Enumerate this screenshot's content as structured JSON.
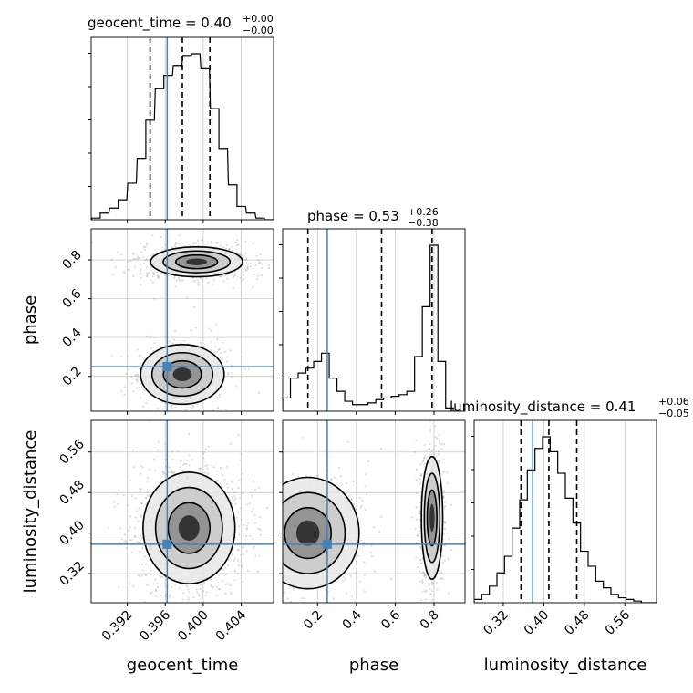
{
  "chart_data": {
    "type": "corner",
    "truth_color": "#4682b4",
    "parameters": [
      {
        "name": "geocent_time",
        "median": "0.40",
        "plus": "+0.00",
        "minus": "−0.00",
        "range": [
          0.3882,
          0.4074
        ],
        "ticks": [
          0.392,
          0.396,
          0.4,
          0.404
        ],
        "tick_labels": [
          "0.392",
          "0.396",
          "0.400",
          "0.404"
        ],
        "quantiles": [
          0.3944,
          0.3978,
          0.4007
        ],
        "truth": 0.3962
      },
      {
        "name": "phase",
        "median": "0.53",
        "plus": "+0.26",
        "minus": "−0.38",
        "range": [
          0.02,
          0.96
        ],
        "ticks": [
          0.2,
          0.4,
          0.6,
          0.8
        ],
        "tick_labels": [
          "0.2",
          "0.4",
          "0.6",
          "0.8"
        ],
        "quantiles": [
          0.15,
          0.53,
          0.79
        ],
        "truth": 0.25
      },
      {
        "name": "luminosity_distance",
        "median": "0.41",
        "plus": "+0.06",
        "minus": "−0.05",
        "range": [
          0.2625,
          0.6225
        ],
        "ticks": [
          0.32,
          0.4,
          0.48,
          0.56
        ],
        "tick_labels": [
          "0.32",
          "0.40",
          "0.48",
          "0.56"
        ],
        "quantiles": [
          0.355,
          0.41,
          0.465
        ],
        "truth": 0.378
      }
    ],
    "histograms": [
      {
        "param": "geocent_time",
        "centers": [
          0.3887,
          0.3896,
          0.3906,
          0.3915,
          0.3925,
          0.3935,
          0.3944,
          0.3954,
          0.3963,
          0.3973,
          0.3983,
          0.3992,
          0.4002,
          0.4012,
          0.4021,
          0.4031,
          0.404,
          0.405,
          0.406,
          0.4069
        ],
        "counts": [
          1,
          4,
          7,
          12,
          22,
          37,
          60,
          79,
          87,
          93,
          99,
          100,
          91,
          67,
          43,
          21,
          8,
          4,
          1,
          0
        ]
      },
      {
        "param": "phase",
        "centers": [
          0.04,
          0.08,
          0.12,
          0.16,
          0.2,
          0.24,
          0.28,
          0.32,
          0.36,
          0.4,
          0.44,
          0.48,
          0.52,
          0.56,
          0.6,
          0.64,
          0.68,
          0.72,
          0.76,
          0.8,
          0.84,
          0.88,
          0.92
        ],
        "counts": [
          8,
          20,
          23,
          26,
          30,
          35,
          20,
          12,
          6,
          4,
          4,
          5,
          7,
          8,
          9,
          10,
          12,
          33,
          63,
          100,
          30,
          2,
          0
        ]
      },
      {
        "param": "luminosity_distance",
        "centers": [
          0.27,
          0.285,
          0.3,
          0.315,
          0.33,
          0.345,
          0.36,
          0.375,
          0.39,
          0.405,
          0.42,
          0.435,
          0.45,
          0.465,
          0.48,
          0.495,
          0.51,
          0.525,
          0.54,
          0.555,
          0.57,
          0.585,
          0.6,
          0.615
        ],
        "counts": [
          2,
          5,
          10,
          18,
          28,
          45,
          62,
          80,
          93,
          100,
          91,
          78,
          63,
          48,
          31,
          22,
          13,
          9,
          5,
          3,
          2,
          1,
          0,
          0
        ]
      }
    ],
    "pairs": [
      {
        "x": "geocent_time",
        "y": "phase",
        "modes": [
          {
            "x": 0.3993,
            "y": 0.79,
            "sx": 0.0022,
            "sy": 0.035,
            "w": 0.65
          },
          {
            "x": 0.3978,
            "y": 0.21,
            "sx": 0.002,
            "sy": 0.07,
            "w": 0.35
          }
        ]
      },
      {
        "x": "geocent_time",
        "y": "luminosity_distance",
        "modes": [
          {
            "x": 0.3985,
            "y": 0.41,
            "sx": 0.0022,
            "sy": 0.05,
            "w": 1.0
          }
        ]
      },
      {
        "x": "phase",
        "y": "luminosity_distance",
        "modes": [
          {
            "x": 0.79,
            "y": 0.43,
            "sx": 0.025,
            "sy": 0.055,
            "w": 0.55
          },
          {
            "x": 0.15,
            "y": 0.4,
            "sx": 0.12,
            "sy": 0.05,
            "w": 0.45
          }
        ]
      }
    ]
  }
}
